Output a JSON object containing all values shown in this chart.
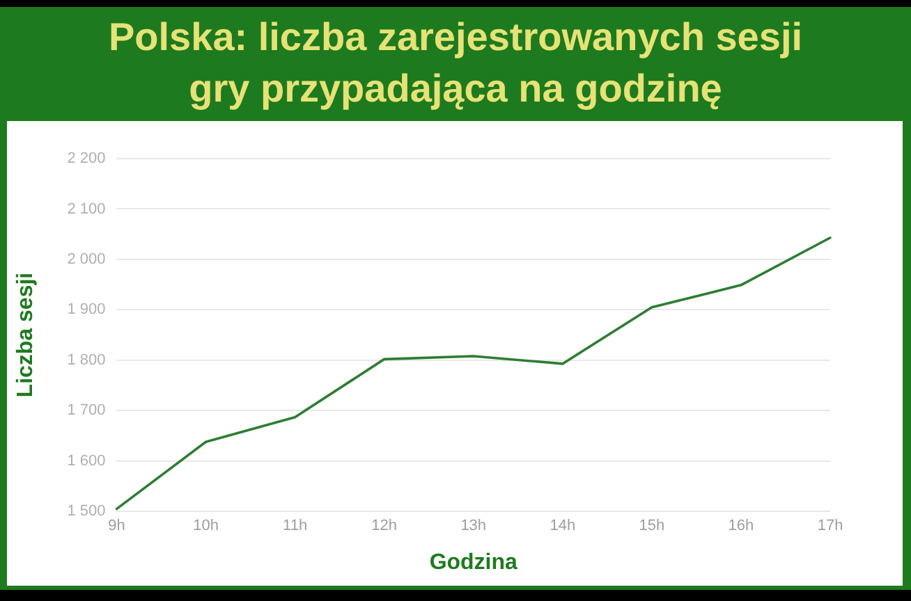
{
  "chart_data": {
    "type": "line",
    "title": "Polska: liczba zarejestrowanych sesji gry przypadająca na godzinę",
    "xlabel": "Godzina",
    "ylabel": "Liczba sesji",
    "categories": [
      "9h",
      "10h",
      "11h",
      "12h",
      "13h",
      "14h",
      "15h",
      "16h",
      "17h"
    ],
    "values": [
      1505,
      1638,
      1687,
      1802,
      1808,
      1793,
      1905,
      1949,
      2043
    ],
    "color": "#2e7d32",
    "ylim": [
      1500,
      2200
    ],
    "yticks": [
      {
        "value": 1500,
        "label": "1 500"
      },
      {
        "value": 1600,
        "label": "1 600"
      },
      {
        "value": 1700,
        "label": "1 700"
      },
      {
        "value": 1800,
        "label": "1 800"
      },
      {
        "value": 1900,
        "label": "1 900"
      },
      {
        "value": 2000,
        "label": "2 000"
      },
      {
        "value": 2100,
        "label": "2 100"
      },
      {
        "value": 2200,
        "label": "2 200"
      }
    ],
    "grid": "y",
    "marker": "none"
  }
}
